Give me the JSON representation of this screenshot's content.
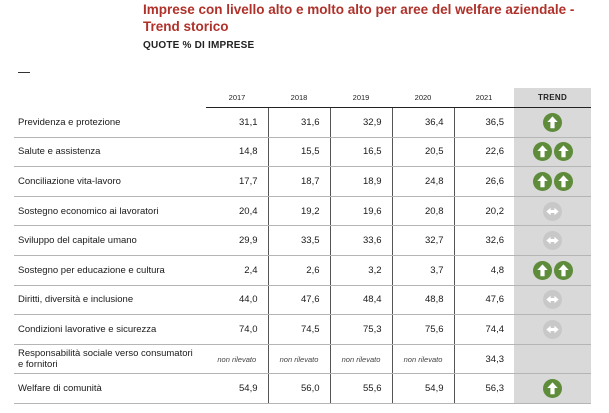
{
  "title": "Imprese con livello alto e molto alto per aree del welfare aziendale - Trend storico",
  "subtitle": "QUOTE % DI IMPRESE",
  "columns": [
    "2017",
    "2018",
    "2019",
    "2020",
    "2021"
  ],
  "trend_header": "TREND",
  "rows": [
    {
      "label": "Previdenza e protezione",
      "values": [
        "31,1",
        "31,6",
        "32,9",
        "36,4",
        "36,5"
      ],
      "trend": "up",
      "trend_icon": "arrow-up-icon",
      "trend_count": 1
    },
    {
      "label": "Salute e assistenza",
      "values": [
        "14,8",
        "15,5",
        "16,5",
        "20,5",
        "22,6"
      ],
      "trend": "up",
      "trend_icon": "arrow-up-icon",
      "trend_count": 2
    },
    {
      "label": "Conciliazione vita-lavoro",
      "values": [
        "17,7",
        "18,7",
        "18,9",
        "24,8",
        "26,6"
      ],
      "trend": "up",
      "trend_icon": "arrow-up-icon",
      "trend_count": 2
    },
    {
      "label": "Sostegno economico ai lavoratori",
      "values": [
        "20,4",
        "19,2",
        "19,6",
        "20,8",
        "20,2"
      ],
      "trend": "stable",
      "trend_icon": "arrow-left-right-icon",
      "trend_count": 1
    },
    {
      "label": "Sviluppo del capitale umano",
      "values": [
        "29,9",
        "33,5",
        "33,6",
        "32,7",
        "32,6"
      ],
      "trend": "stable",
      "trend_icon": "arrow-left-right-icon",
      "trend_count": 1
    },
    {
      "label": "Sostegno per educazione e cultura",
      "values": [
        "2,4",
        "2,6",
        "3,2",
        "3,7",
        "4,8"
      ],
      "trend": "up",
      "trend_icon": "arrow-up-icon",
      "trend_count": 2
    },
    {
      "label": "Diritti, diversità e inclusione",
      "values": [
        "44,0",
        "47,6",
        "48,4",
        "48,8",
        "47,6"
      ],
      "trend": "stable",
      "trend_icon": "arrow-left-right-icon",
      "trend_count": 1
    },
    {
      "label": "Condizioni lavorative e sicurezza",
      "values": [
        "74,0",
        "74,5",
        "75,3",
        "75,6",
        "74,4"
      ],
      "trend": "stable",
      "trend_icon": "arrow-left-right-icon",
      "trend_count": 1
    },
    {
      "label": "Responsabilità sociale verso consumatori e fornitori",
      "values": [
        "non rilevato",
        "non rilevato",
        "non rilevato",
        "non rilevato",
        "34,3"
      ],
      "trend": "none",
      "trend_icon": "",
      "trend_count": 0
    },
    {
      "label": "Welfare di comunità",
      "values": [
        "54,9",
        "56,0",
        "55,6",
        "54,9",
        "56,3"
      ],
      "trend": "up",
      "trend_icon": "arrow-up-icon",
      "trend_count": 1
    }
  ],
  "colors": {
    "title": "#b0312a",
    "up": "#5e8c3a",
    "stable": "#c8c8c8",
    "trend_bg": "#d9d9d9"
  }
}
